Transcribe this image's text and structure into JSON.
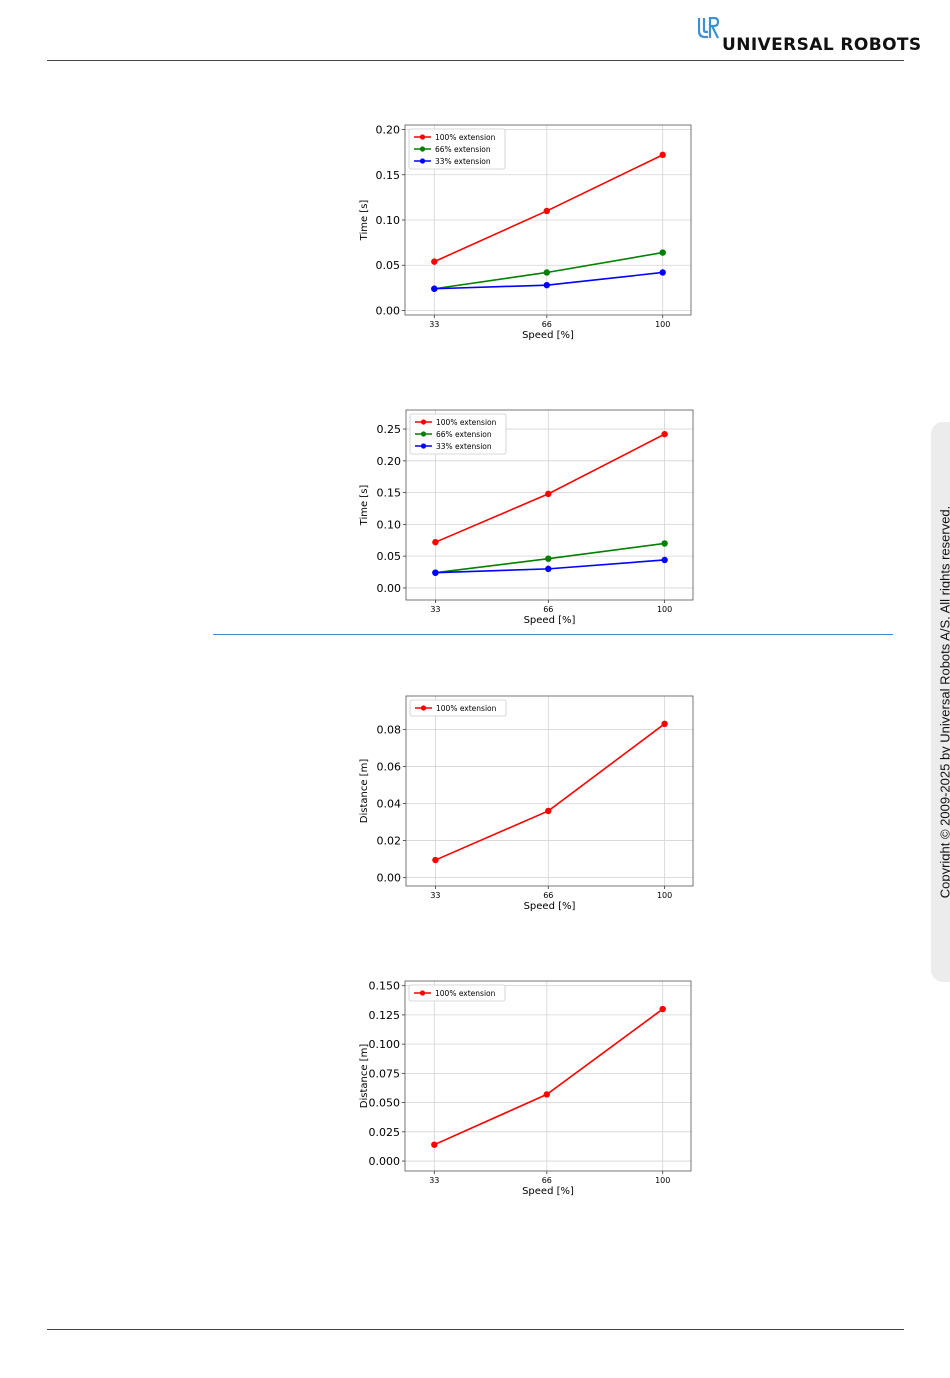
{
  "header": {
    "logo_text": "UNIVERSAL ROBOTS",
    "logo_icon": "ur-logo-icon"
  },
  "sidebar": {
    "copyright": "Copyright © 2009-2025 by Universal Robots A/S. All rights reserved."
  },
  "colors": {
    "red": "#ff0000",
    "green": "#008000",
    "blue": "#0000ff",
    "accent_rule": "#3d8fd1"
  },
  "chart_data": [
    {
      "type": "line",
      "title": "",
      "xlabel": "Speed [%]",
      "ylabel": "Time [s]",
      "x": [
        33,
        66,
        100
      ],
      "xticks": [
        "33",
        "66",
        "100"
      ],
      "ylim": [
        -0.005,
        0.205
      ],
      "yticks": [
        "0.00",
        "0.05",
        "0.10",
        "0.15",
        "0.20"
      ],
      "grid": true,
      "legend": "top-left",
      "series": [
        {
          "name": "100% extension",
          "color": "#ff0000",
          "values": [
            0.054,
            0.11,
            0.172
          ]
        },
        {
          "name": "66% extension",
          "color": "#008000",
          "values": [
            0.024,
            0.042,
            0.064
          ]
        },
        {
          "name": "33% extension",
          "color": "#0000ff",
          "values": [
            0.024,
            0.028,
            0.042
          ]
        }
      ]
    },
    {
      "type": "line",
      "title": "",
      "xlabel": "Speed [%]",
      "ylabel": "Time [s]",
      "x": [
        33,
        66,
        100
      ],
      "xticks": [
        "33",
        "66",
        "100"
      ],
      "ylim": [
        -0.019,
        0.28
      ],
      "yticks": [
        "0.00",
        "0.05",
        "0.10",
        "0.15",
        "0.20",
        "0.25"
      ],
      "grid": true,
      "legend": "top-left",
      "series": [
        {
          "name": "100% extension",
          "color": "#ff0000",
          "values": [
            0.072,
            0.148,
            0.242
          ]
        },
        {
          "name": "66% extension",
          "color": "#008000",
          "values": [
            0.024,
            0.046,
            0.07
          ]
        },
        {
          "name": "33% extension",
          "color": "#0000ff",
          "values": [
            0.024,
            0.03,
            0.044
          ]
        }
      ]
    },
    {
      "type": "line",
      "title": "",
      "xlabel": "Speed [%]",
      "ylabel": "Distance [m]",
      "x": [
        33,
        66,
        100
      ],
      "xticks": [
        "33",
        "66",
        "100"
      ],
      "ylim": [
        -0.0045,
        0.098
      ],
      "yticks": [
        "0.00",
        "0.02",
        "0.04",
        "0.06",
        "0.08"
      ],
      "grid": true,
      "legend": "top-left",
      "series": [
        {
          "name": "100% extension",
          "color": "#ff0000",
          "values": [
            0.0095,
            0.036,
            0.083
          ]
        }
      ]
    },
    {
      "type": "line",
      "title": "",
      "xlabel": "Speed [%]",
      "ylabel": "Distance [m]",
      "x": [
        33,
        66,
        100
      ],
      "xticks": [
        "33",
        "66",
        "100"
      ],
      "ylim": [
        -0.0085,
        0.154
      ],
      "yticks": [
        "0.000",
        "0.025",
        "0.050",
        "0.075",
        "0.100",
        "0.125",
        "0.150"
      ],
      "grid": true,
      "legend": "top-left",
      "series": [
        {
          "name": "100% extension",
          "color": "#ff0000",
          "values": [
            0.014,
            0.057,
            0.13
          ]
        }
      ]
    }
  ]
}
